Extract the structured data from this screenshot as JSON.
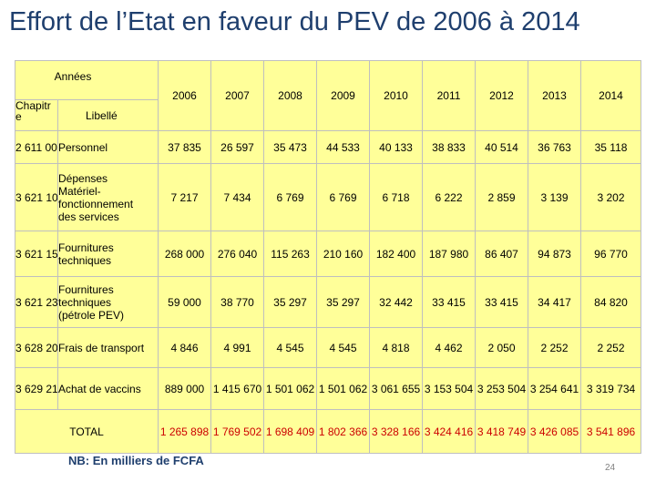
{
  "title": "Effort de l’Etat en faveur du PEV de 2006 à 2014",
  "header": {
    "annees": "Années",
    "chapitre": "Chapitr\ne",
    "libelle": "Libellé",
    "years": [
      "2006",
      "2007",
      "2008",
      "2009",
      "2010",
      "2011",
      "2012",
      "2013",
      "2014"
    ]
  },
  "rows": [
    {
      "code": "2 611 00",
      "label": "Personnel",
      "values": [
        "37 835",
        "26 597",
        "35 473",
        "44 533",
        "40 133",
        "38 833",
        "40 514",
        "36 763",
        "35 118"
      ]
    },
    {
      "code": "3 621 10",
      "label": "Dépenses\nMatériel-\nfonctionnement\ndes services",
      "values": [
        "7 217",
        "7 434",
        "6 769",
        "6 769",
        "6 718",
        "6 222",
        "2 859",
        "3 139",
        "3 202"
      ]
    },
    {
      "code": "3 621 15",
      "label": "Fournitures\ntechniques",
      "values": [
        "268 000",
        "276 040",
        "115 263",
        "210 160",
        "182 400",
        "187 980",
        "86 407",
        "94 873",
        "96 770"
      ]
    },
    {
      "code": "3 621 23",
      "label": "Fournitures\ntechniques\n(pétrole PEV)",
      "values": [
        "59 000",
        "38 770",
        "35 297",
        "35 297",
        "32 442",
        "33 415",
        "33 415",
        "34 417",
        "84 820"
      ]
    },
    {
      "code": "3 628 20",
      "label": "Frais de transport",
      "values": [
        "4 846",
        "4 991",
        "4 545",
        "4 545",
        "4 818",
        "4 462",
        "2 050",
        "2 252",
        "2 252"
      ]
    },
    {
      "code": "3 629 21",
      "label": "Achat de vaccins",
      "values": [
        "889 000",
        "1 415 670",
        "1 501 062",
        "1 501 062",
        "3 061 655",
        "3 153 504",
        "3 253 504",
        "3 254 641",
        "3 319 734"
      ]
    }
  ],
  "total": {
    "label": "TOTAL",
    "values": [
      "1 265 898",
      "1 769 502",
      "1 698 409",
      "1 802 366",
      "3 328 166",
      "3 424 416",
      "3 418 749",
      "3 426 085",
      "3 541 896"
    ]
  },
  "note": "NB: En milliers de FCFA",
  "page_number": "24",
  "colors": {
    "title": "#1f3f6e",
    "table_bg": "#ffff99",
    "total_values": "#cc0000",
    "border": "#bfbfbf"
  }
}
